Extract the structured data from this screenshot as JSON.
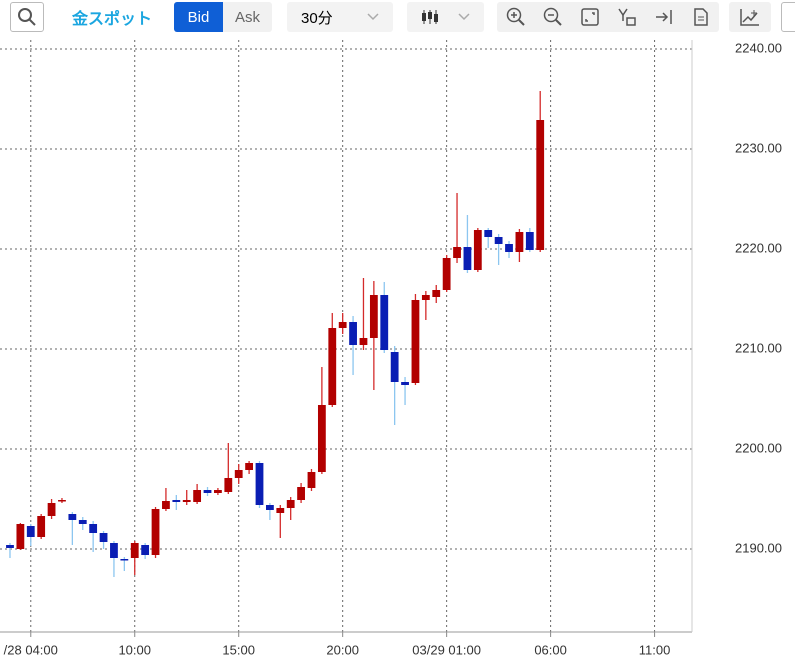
{
  "toolbar": {
    "instrument": "金スポット",
    "bid": "Bid",
    "ask": "Ask",
    "interval": "30分"
  },
  "chart_data": {
    "type": "candlestick",
    "x": [
      0,
      1,
      2,
      3,
      4,
      5,
      6,
      7,
      8,
      9,
      10,
      11,
      12,
      13,
      14,
      15,
      16,
      17,
      18,
      19,
      20,
      21,
      22,
      23,
      24,
      25,
      26,
      27,
      28,
      29,
      30,
      31,
      32,
      33,
      34,
      35,
      36,
      37,
      38,
      39,
      40,
      41,
      42,
      43,
      44,
      45,
      46,
      47,
      48,
      49,
      50,
      51
    ],
    "open": [
      2190.4,
      2190.0,
      2192.3,
      2191.2,
      2193.3,
      2194.8,
      2193.5,
      2192.9,
      2192.5,
      2191.6,
      2190.6,
      2189.0,
      2189.1,
      2190.4,
      2189.4,
      2194.0,
      2194.9,
      2194.7,
      2194.7,
      2195.9,
      2195.6,
      2195.7,
      2197.1,
      2197.9,
      2198.6,
      2194.4,
      2193.6,
      2194.1,
      2194.9,
      2196.1,
      2197.7,
      2204.4,
      2212.1,
      2212.7,
      2210.4,
      2211.1,
      2215.4,
      2209.7,
      2206.7,
      2206.6,
      2214.9,
      2215.2,
      2215.9,
      2219.1,
      2220.2,
      2217.9,
      2221.9,
      2221.2,
      2220.5,
      2219.7,
      2221.7,
      2219.9
    ],
    "high": [
      2190.6,
      2192.6,
      2192.5,
      2193.5,
      2195.0,
      2195.1,
      2193.7,
      2193.2,
      2192.8,
      2191.8,
      2190.8,
      2189.2,
      2190.8,
      2190.6,
      2194.2,
      2196.1,
      2195.4,
      2195.9,
      2196.5,
      2196.2,
      2196.1,
      2200.6,
      2198.5,
      2198.8,
      2198.8,
      2194.6,
      2194.4,
      2195.2,
      2196.6,
      2198.0,
      2208.2,
      2213.6,
      2213.6,
      2213.3,
      2217.1,
      2216.8,
      2216.7,
      2210.3,
      2207.2,
      2215.5,
      2215.8,
      2216.4,
      2219.4,
      2225.6,
      2223.4,
      2222.1,
      2222.1,
      2221.5,
      2220.8,
      2222.0,
      2222.1,
      2235.8
    ],
    "low": [
      2189.1,
      2189.9,
      2190.3,
      2191.0,
      2193.0,
      2194.6,
      2190.4,
      2191.9,
      2189.7,
      2190.0,
      2187.2,
      2187.8,
      2187.4,
      2189.0,
      2189.1,
      2193.8,
      2193.9,
      2194.4,
      2194.5,
      2195.3,
      2195.4,
      2195.5,
      2196.5,
      2197.5,
      2194.1,
      2192.9,
      2191.1,
      2192.9,
      2194.6,
      2195.8,
      2197.5,
      2204.2,
      2211.5,
      2207.4,
      2209.9,
      2205.9,
      2209.6,
      2202.4,
      2204.4,
      2206.4,
      2212.9,
      2214.6,
      2215.7,
      2218.6,
      2217.6,
      2217.7,
      2220.1,
      2218.4,
      2219.1,
      2218.7,
      2219.7,
      2219.7
    ],
    "close": [
      2190.1,
      2192.5,
      2191.2,
      2193.3,
      2194.6,
      2194.9,
      2192.9,
      2192.5,
      2191.6,
      2190.7,
      2189.1,
      2188.9,
      2190.6,
      2189.4,
      2194.0,
      2194.8,
      2194.7,
      2194.9,
      2195.9,
      2195.6,
      2195.9,
      2197.1,
      2197.9,
      2198.6,
      2194.4,
      2193.9,
      2194.1,
      2194.9,
      2196.2,
      2197.7,
      2204.4,
      2212.1,
      2212.7,
      2210.4,
      2211.1,
      2215.4,
      2209.9,
      2206.7,
      2206.4,
      2214.9,
      2215.4,
      2215.9,
      2219.1,
      2220.2,
      2217.9,
      2221.9,
      2221.2,
      2220.5,
      2219.7,
      2221.7,
      2219.9,
      2232.9
    ],
    "up_color": "#b20000",
    "down_color": "#0a1eb4",
    "up_wick_color": "#d42a2a",
    "down_wick_color": "#8cc6f0",
    "xlim": [
      -0.96,
      65.6
    ],
    "xticks": [
      {
        "value": 2,
        "label": "/28 04:00"
      },
      {
        "value": 12,
        "label": "10:00"
      },
      {
        "value": 22,
        "label": "15:00"
      },
      {
        "value": 32,
        "label": "20:00"
      },
      {
        "value": 42,
        "label": "03/29 01:00"
      },
      {
        "value": 52,
        "label": "06:00"
      },
      {
        "value": 62,
        "label": "11:00"
      }
    ],
    "ylim": [
      2181.7,
      2240.9
    ],
    "yticks": [
      {
        "value": 2190,
        "label": "2190.00"
      },
      {
        "value": 2200,
        "label": "2200.00"
      },
      {
        "value": 2210,
        "label": "2210.00"
      },
      {
        "value": 2220,
        "label": "2220.00"
      },
      {
        "value": 2230,
        "label": "2230.00"
      },
      {
        "value": 2240,
        "label": "2240.00"
      }
    ],
    "grid": true
  }
}
